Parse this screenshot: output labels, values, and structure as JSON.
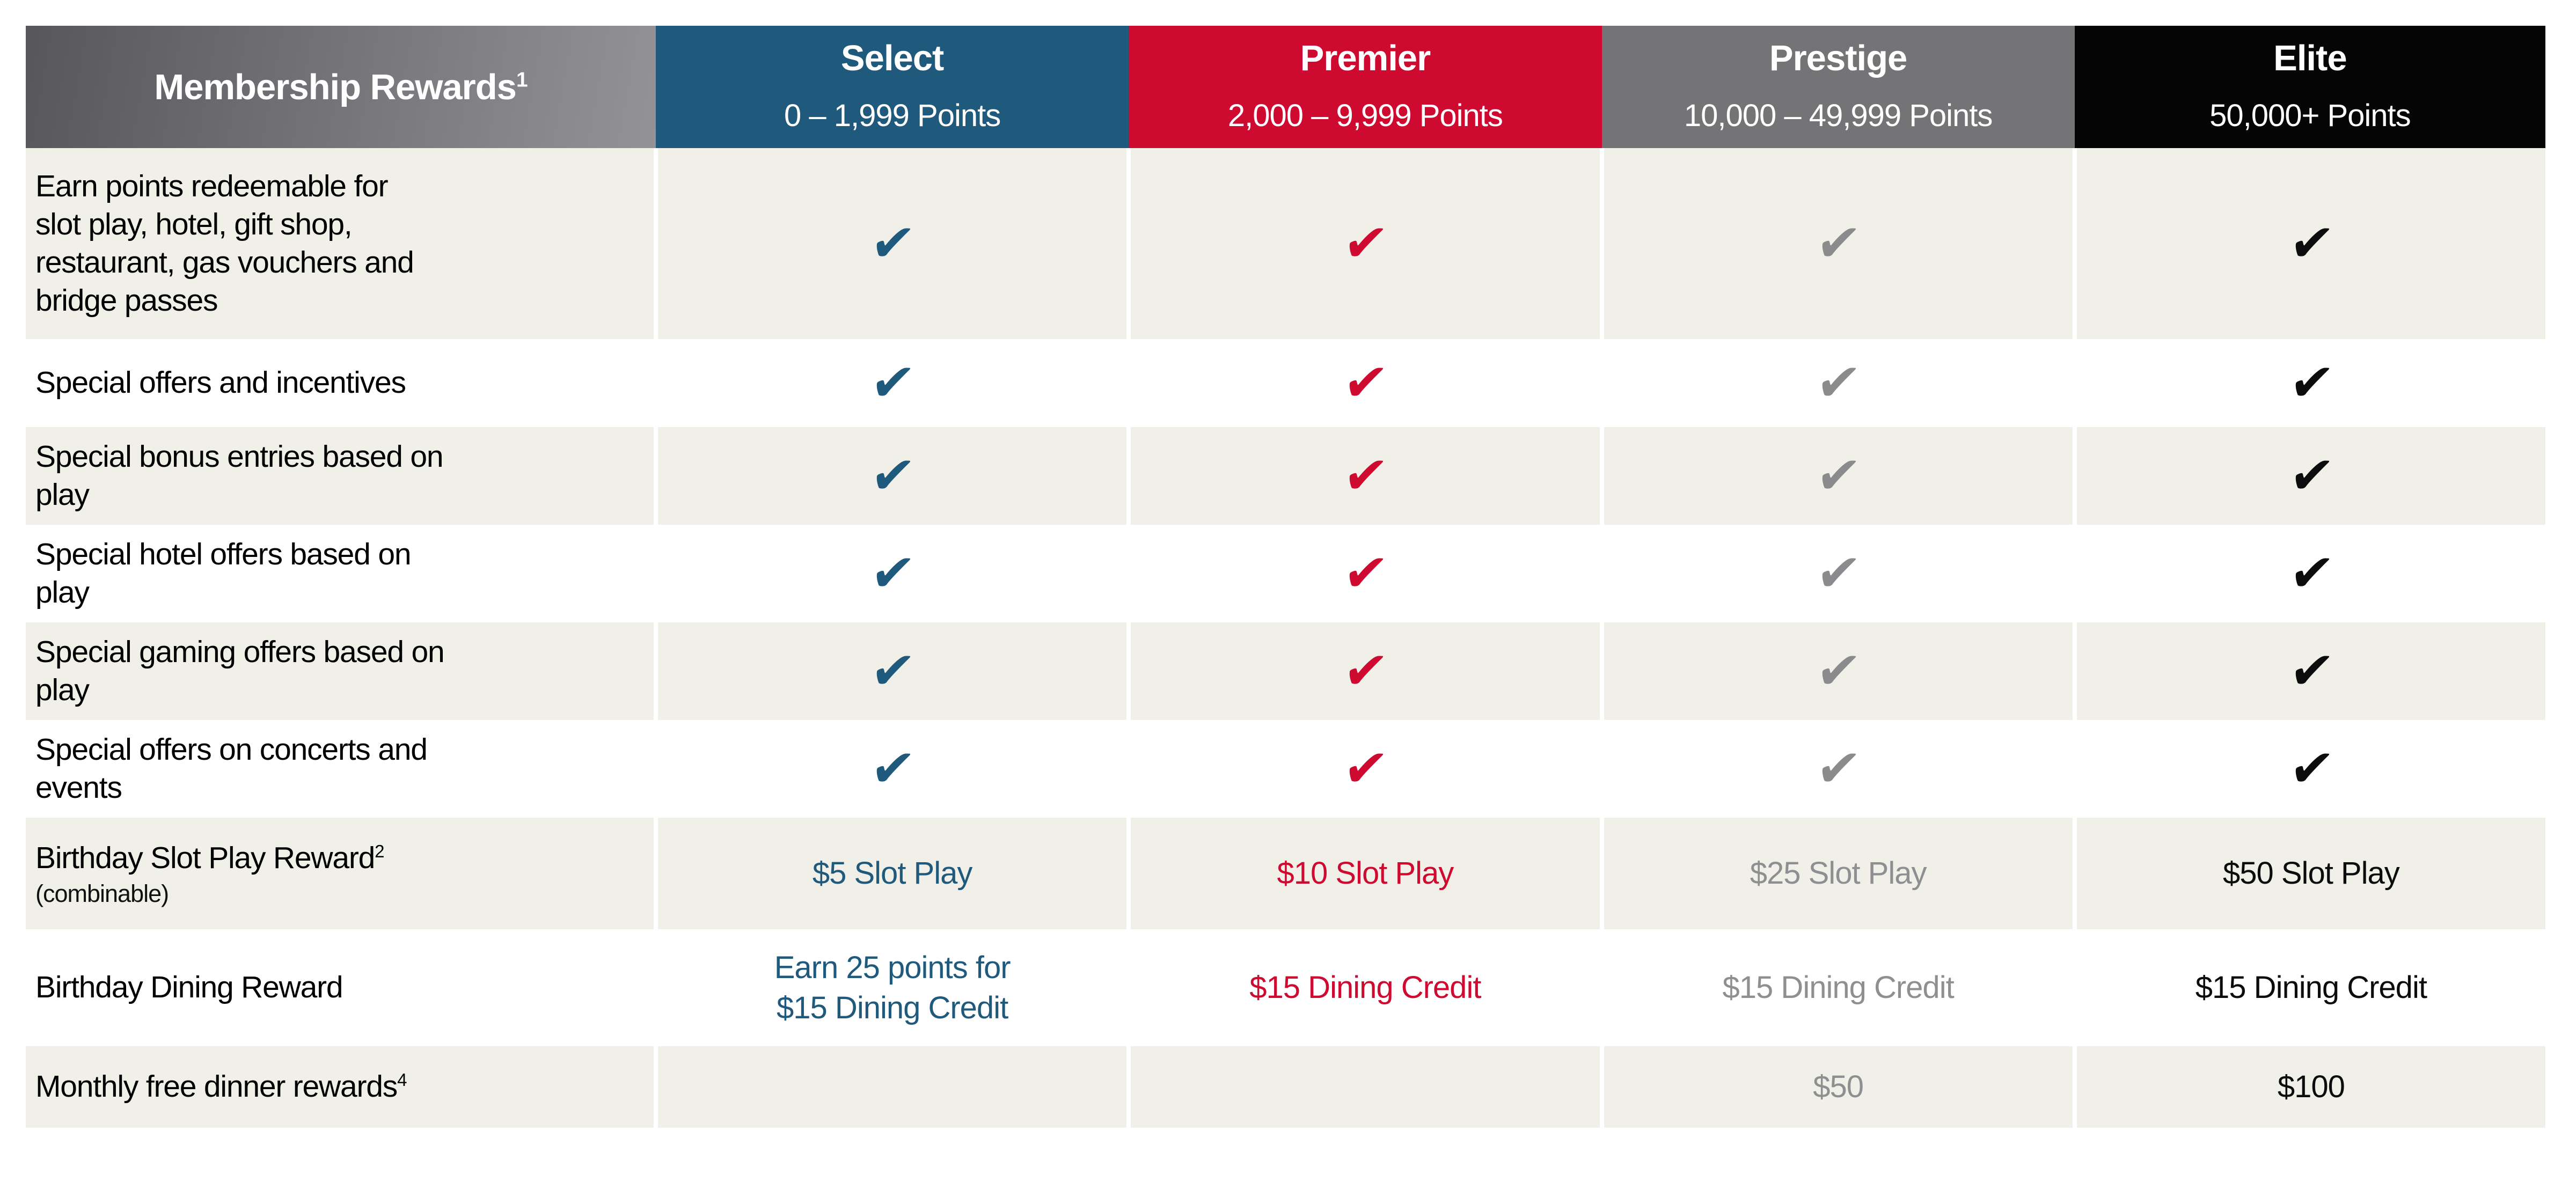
{
  "header": {
    "label_title": "Membership Rewards",
    "label_sup": "1",
    "tiers": [
      {
        "name": "Select",
        "points": "0 – 1,999 Points",
        "color": "#1f597c"
      },
      {
        "name": "Premier",
        "points": "2,000 – 9,999 Points",
        "color": "#ce0a31"
      },
      {
        "name": "Prestige",
        "points": "10,000 – 49,999 Points",
        "color": "#747477"
      },
      {
        "name": "Elite",
        "points": "50,000+ Points",
        "color": "#050505"
      }
    ]
  },
  "check_glyph": "✔",
  "rows": [
    {
      "label": "Earn points redeemable for\nslot play, hotel, gift shop,\nrestaurant, gas vouchers and\nbridge passes",
      "cells": [
        "✔",
        "✔",
        "✔",
        "✔"
      ]
    },
    {
      "label": "Special offers and incentives",
      "cells": [
        "✔",
        "✔",
        "✔",
        "✔"
      ]
    },
    {
      "label": "Special bonus entries based on\nplay",
      "cells": [
        "✔",
        "✔",
        "✔",
        "✔"
      ]
    },
    {
      "label": "Special hotel offers based on\nplay",
      "cells": [
        "✔",
        "✔",
        "✔",
        "✔"
      ]
    },
    {
      "label": "Special gaming offers based on\nplay",
      "cells": [
        "✔",
        "✔",
        "✔",
        "✔"
      ]
    },
    {
      "label": "Special offers on concerts and\nevents",
      "cells": [
        "✔",
        "✔",
        "✔",
        "✔"
      ]
    },
    {
      "label": "Birthday Slot Play Reward",
      "sup": "2",
      "note": "(combinable)",
      "cells": [
        "$5 Slot Play",
        "$10 Slot Play",
        "$25 Slot Play",
        "$50 Slot Play"
      ]
    },
    {
      "label": "Birthday Dining Reward",
      "cells": [
        "Earn 25 points for\n$15 Dining Credit",
        "$15 Dining Credit",
        "$15 Dining Credit",
        "$15 Dining Credit"
      ]
    },
    {
      "label": "Monthly free dinner rewards",
      "sup": "4",
      "cells": [
        "",
        "",
        "$50",
        "$100"
      ]
    }
  ],
  "colors": {
    "header_gradient_left": "#57575b",
    "header_gradient_right": "#939397",
    "row_alt_bg": "#f0f0e9",
    "value_text": [
      "#1f597c",
      "#ce0a31",
      "#8f8f92",
      "#0c0c0c"
    ],
    "check": [
      "#1f597c",
      "#ce0a31",
      "#8b8b8e",
      "#0c0c0c"
    ],
    "label_text": "#000000"
  }
}
